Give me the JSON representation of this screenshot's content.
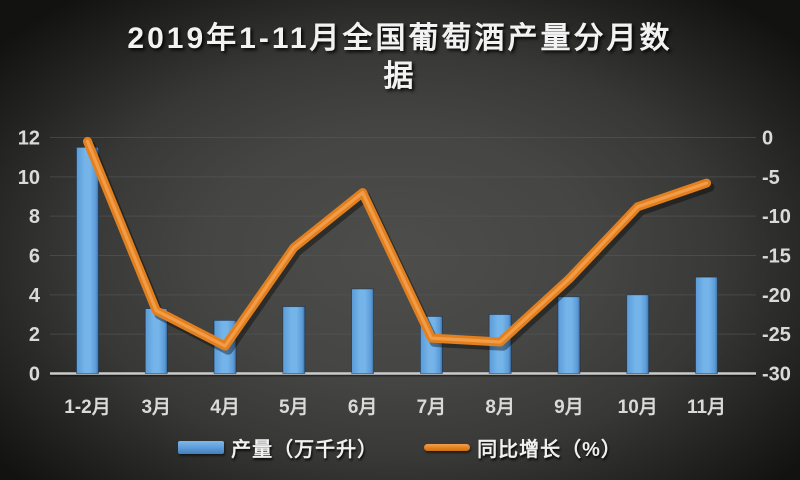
{
  "title_lines": [
    "2019年1-11月全国葡萄酒产量分月数",
    "据"
  ],
  "chart_data": {
    "type": "bar",
    "title": "2019年1-11月全国葡萄酒产量分月数据",
    "categories": [
      "1-2月",
      "3月",
      "4月",
      "5月",
      "6月",
      "7月",
      "8月",
      "9月",
      "10月",
      "11月"
    ],
    "series": [
      {
        "name": "产量（万千升）",
        "type": "bar",
        "axis": "left",
        "values": [
          11.5,
          3.3,
          2.7,
          3.4,
          4.3,
          2.9,
          3.0,
          3.9,
          4.0,
          4.9
        ]
      },
      {
        "name": "同比增长（%）",
        "type": "line",
        "axis": "right",
        "values": [
          -0.5,
          -22,
          -26.5,
          -14,
          -7,
          -25.5,
          -26,
          -18,
          -8.8,
          -5.8
        ]
      }
    ],
    "left_axis": {
      "range": [
        0,
        12
      ],
      "ticks": [
        0,
        2,
        4,
        6,
        8,
        10,
        12
      ]
    },
    "right_axis": {
      "range": [
        -30,
        0
      ],
      "ticks": [
        0,
        -5,
        -10,
        -15,
        -20,
        -25,
        -30
      ]
    },
    "grid": true,
    "legend_position": "bottom",
    "xlabel": "",
    "ylabel": ""
  },
  "colors": {
    "bar": "#5b9bd8",
    "bar_light": "#74b4e9",
    "bar_dark": "#416f9f",
    "line": "#e2801f",
    "line_highlight": "#f49e4b",
    "grid": "#57575b",
    "baseline": "#cccccc",
    "axis_text": "#dadada",
    "title_text": "#f2f2f2",
    "background_center": "#4d4d4b",
    "background_edge": "#121211"
  }
}
